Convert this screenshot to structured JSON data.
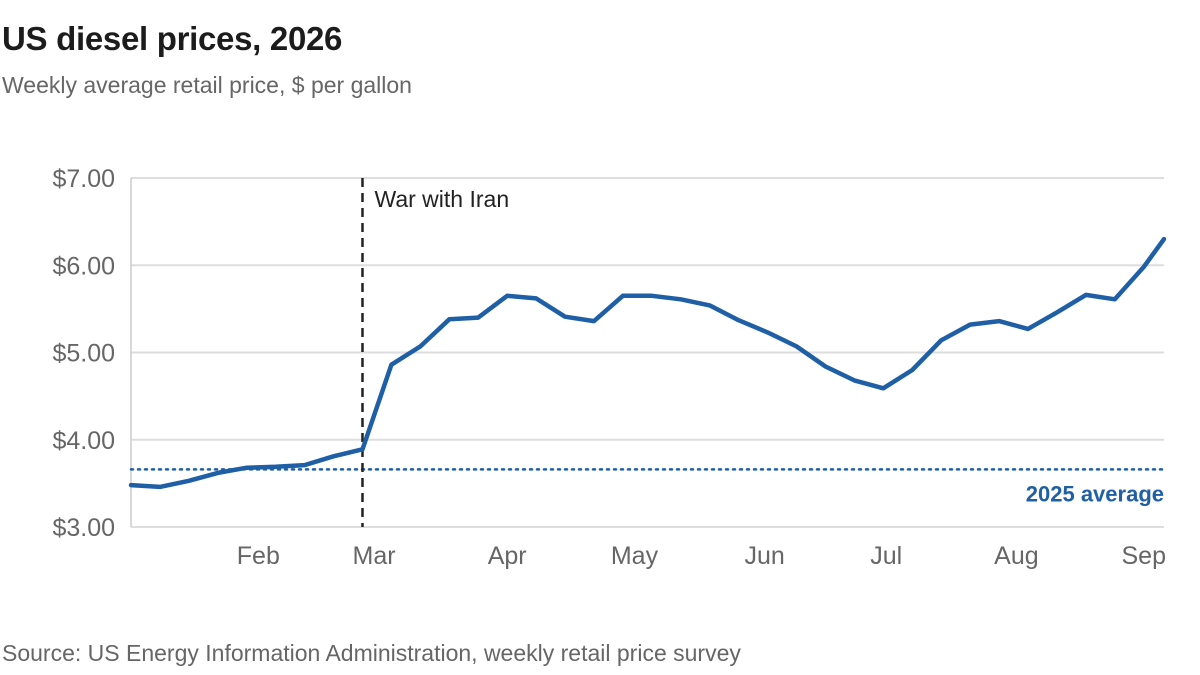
{
  "header": {
    "title": "US diesel prices, 2026",
    "subtitle": "Weekly average retail price, $ per gallon"
  },
  "footer": {
    "source": "Source: US Energy Information Administration, weekly retail price survey"
  },
  "colors": {
    "series": "#1f5fa6",
    "reference": "#1f5fa6",
    "annotation": "#222222",
    "grid": "#dddddd",
    "axis": "#666666"
  },
  "chart_data": {
    "type": "line",
    "x_unit": "week",
    "ylim": [
      3.0,
      7.0
    ],
    "y_ticks": [
      3.0,
      4.0,
      5.0,
      6.0,
      7.0
    ],
    "y_tick_labels": [
      "$3.00",
      "$4.00",
      "$5.00",
      "$6.00",
      "$7.00"
    ],
    "x_range": [
      0,
      35.7
    ],
    "x_ticks": [
      4.4,
      8.4,
      13.0,
      17.4,
      21.9,
      26.1,
      30.6,
      35.0
    ],
    "x_tick_labels": [
      "Feb",
      "Mar",
      "Apr",
      "May",
      "Jun",
      "Jul",
      "Aug",
      "Sep"
    ],
    "grid": true,
    "series": [
      {
        "values": [
          {
            "x": 0,
            "y": 3.48
          },
          {
            "x": 1,
            "y": 3.46
          },
          {
            "x": 2,
            "y": 3.53
          },
          {
            "x": 3,
            "y": 3.62
          },
          {
            "x": 4,
            "y": 3.68
          },
          {
            "x": 5,
            "y": 3.69
          },
          {
            "x": 6,
            "y": 3.71
          },
          {
            "x": 7,
            "y": 3.81
          },
          {
            "x": 8,
            "y": 3.89
          },
          {
            "x": 9,
            "y": 4.86
          },
          {
            "x": 10,
            "y": 5.07
          },
          {
            "x": 11,
            "y": 5.38
          },
          {
            "x": 12,
            "y": 5.4
          },
          {
            "x": 13,
            "y": 5.65
          },
          {
            "x": 14,
            "y": 5.62
          },
          {
            "x": 15,
            "y": 5.41
          },
          {
            "x": 16,
            "y": 5.36
          },
          {
            "x": 17,
            "y": 5.65
          },
          {
            "x": 18,
            "y": 5.65
          },
          {
            "x": 19,
            "y": 5.61
          },
          {
            "x": 20,
            "y": 5.54
          },
          {
            "x": 21,
            "y": 5.37
          },
          {
            "x": 22,
            "y": 5.23
          },
          {
            "x": 23,
            "y": 5.07
          },
          {
            "x": 24,
            "y": 4.84
          },
          {
            "x": 25,
            "y": 4.68
          },
          {
            "x": 26,
            "y": 4.59
          },
          {
            "x": 27,
            "y": 4.8
          },
          {
            "x": 28,
            "y": 5.14
          },
          {
            "x": 29,
            "y": 5.32
          },
          {
            "x": 30,
            "y": 5.36
          },
          {
            "x": 31,
            "y": 5.27
          },
          {
            "x": 32,
            "y": 5.46
          },
          {
            "x": 33,
            "y": 5.66
          },
          {
            "x": 34,
            "y": 5.61
          },
          {
            "x": 35,
            "y": 5.98
          },
          {
            "x": 35.7,
            "y": 6.3
          }
        ]
      }
    ],
    "reference_line": {
      "y": 3.66,
      "label": "2025 average",
      "style": "dotted"
    },
    "event_line": {
      "x": 8.0,
      "label": "War with Iran",
      "style": "dashed"
    }
  }
}
